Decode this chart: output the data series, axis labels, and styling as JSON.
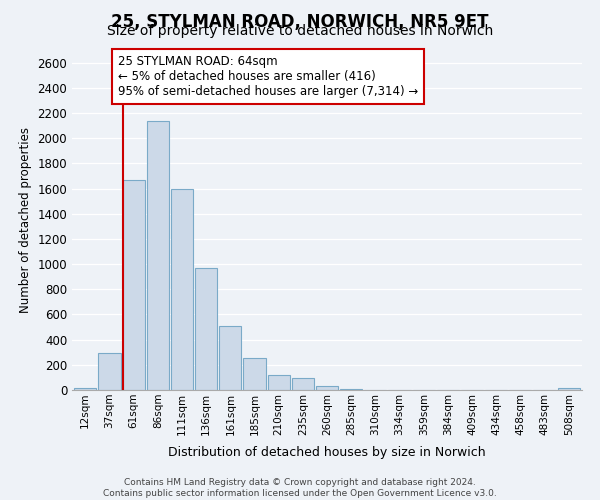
{
  "title": "25, STYLMAN ROAD, NORWICH, NR5 9ET",
  "subtitle": "Size of property relative to detached houses in Norwich",
  "xlabel": "Distribution of detached houses by size in Norwich",
  "ylabel": "Number of detached properties",
  "bar_labels": [
    "12sqm",
    "37sqm",
    "61sqm",
    "86sqm",
    "111sqm",
    "136sqm",
    "161sqm",
    "185sqm",
    "210sqm",
    "235sqm",
    "260sqm",
    "285sqm",
    "310sqm",
    "334sqm",
    "359sqm",
    "384sqm",
    "409sqm",
    "434sqm",
    "458sqm",
    "483sqm",
    "508sqm"
  ],
  "bar_values": [
    15,
    295,
    1670,
    2140,
    1600,
    970,
    505,
    255,
    120,
    95,
    30,
    5,
    0,
    0,
    0,
    0,
    0,
    0,
    0,
    0,
    15
  ],
  "bar_color": "#ccd9e8",
  "bar_edge_color": "#7aaac8",
  "ylim": [
    0,
    2700
  ],
  "yticks": [
    0,
    200,
    400,
    600,
    800,
    1000,
    1200,
    1400,
    1600,
    1800,
    2000,
    2200,
    2400,
    2600
  ],
  "marker_label": "25 STYLMAN ROAD: 64sqm",
  "annotation_line1": "← 5% of detached houses are smaller (416)",
  "annotation_line2": "95% of semi-detached houses are larger (7,314) →",
  "vline_color": "#cc0000",
  "footer_line1": "Contains HM Land Registry data © Crown copyright and database right 2024.",
  "footer_line2": "Contains public sector information licensed under the Open Government Licence v3.0.",
  "background_color": "#eef2f7",
  "grid_color": "#ffffff",
  "title_fontsize": 12,
  "subtitle_fontsize": 10
}
